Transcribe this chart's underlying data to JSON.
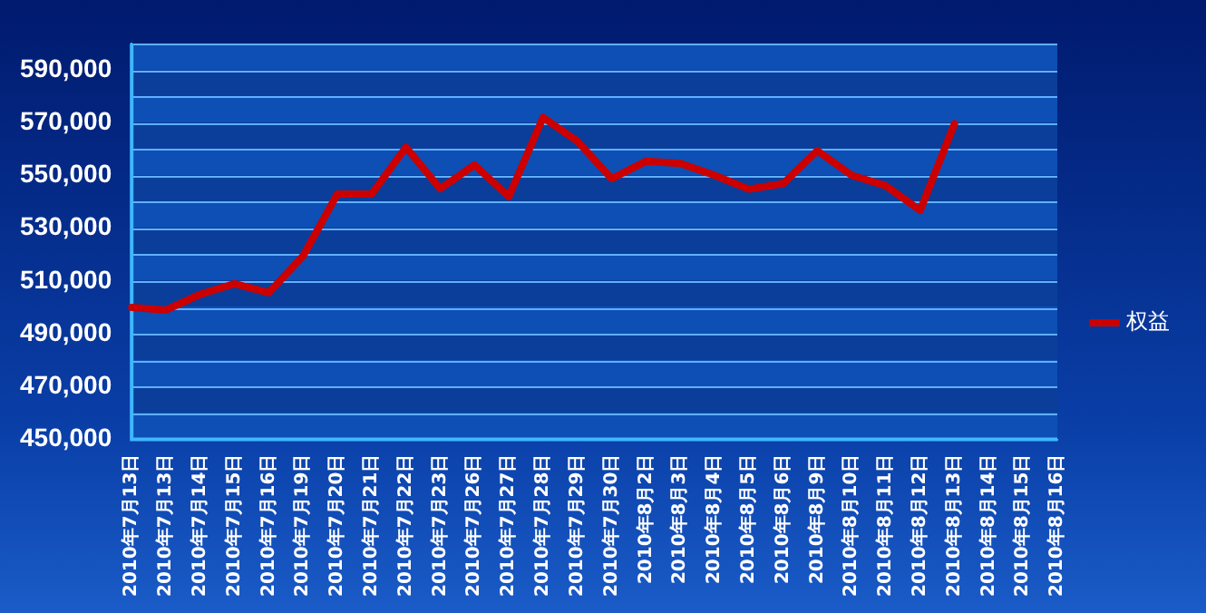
{
  "chart_data": {
    "type": "line",
    "categories": [
      "2010年7月13日",
      "2010年7月13日",
      "2010年7月14日",
      "2010年7月15日",
      "2010年7月16日",
      "2010年7月19日",
      "2010年7月20日",
      "2010年7月21日",
      "2010年7月22日",
      "2010年7月23日",
      "2010年7月26日",
      "2010年7月27日",
      "2010年7月28日",
      "2010年7月29日",
      "2010年7月30日",
      "2010年8月2日",
      "2010年8月3日",
      "2010年8月4日",
      "2010年8月5日",
      "2010年8月6日",
      "2010年8月9日",
      "2010年8月10日",
      "2010年8月11日",
      "2010年8月12日",
      "2010年8月13日",
      "2010年8月14日",
      "2010年8月15日",
      "2010年8月16日"
    ],
    "series": [
      {
        "name": "权益",
        "color": "#cc0000",
        "values": [
          500000,
          499000,
          505000,
          509000,
          505600,
          519500,
          543000,
          543000,
          560700,
          545000,
          554000,
          542000,
          572000,
          563000,
          548800,
          555400,
          554600,
          550100,
          544800,
          546900,
          559400,
          550100,
          546100,
          536800,
          569600,
          null,
          null,
          null
        ]
      }
    ],
    "ylim": [
      450000,
      600000
    ],
    "yticks": [
      {
        "value": 450000,
        "label": "450,000"
      },
      {
        "value": 460000,
        "label": null
      },
      {
        "value": 470000,
        "label": "470,000"
      },
      {
        "value": 480000,
        "label": null
      },
      {
        "value": 490000,
        "label": "490,000"
      },
      {
        "value": 500000,
        "label": null
      },
      {
        "value": 510000,
        "label": "510,000"
      },
      {
        "value": 520000,
        "label": null
      },
      {
        "value": 530000,
        "label": "530,000"
      },
      {
        "value": 540000,
        "label": null
      },
      {
        "value": 550000,
        "label": "550,000"
      },
      {
        "value": 560000,
        "label": null
      },
      {
        "value": 570000,
        "label": "570,000"
      },
      {
        "value": 580000,
        "label": null
      },
      {
        "value": 590000,
        "label": "590,000"
      },
      {
        "value": 600000,
        "label": null
      }
    ],
    "grid": "y",
    "legend": "right",
    "marker": "none",
    "line_style": "solid"
  }
}
